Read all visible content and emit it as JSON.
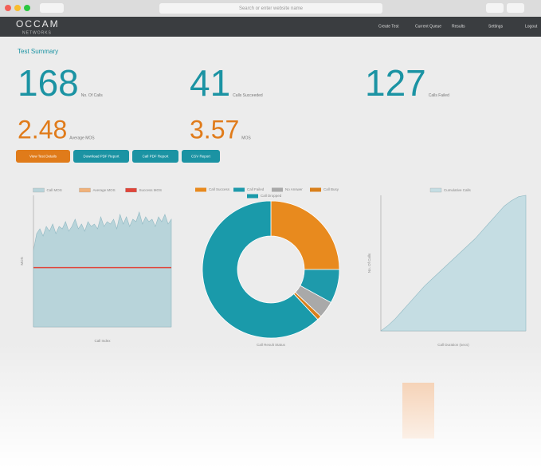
{
  "browser": {
    "address": "Search or enter website name"
  },
  "header": {
    "logo": "OCCAM",
    "logo_sub": "NETWORKS",
    "nav": [
      "Create Test",
      "Current Queue",
      "Results",
      "Settings",
      "Logout"
    ]
  },
  "section_title": "Test Summary",
  "stats": [
    {
      "value": 168,
      "label": "No. Of Calls",
      "color": "#1b93a3"
    },
    {
      "value": 41,
      "label": "Calls Succeeded",
      "color": "#1b93a3"
    },
    {
      "value": 127,
      "label": "Calls Failed",
      "color": "#1b93a3"
    },
    {
      "value": 2.48,
      "label": "Average MOS",
      "color": "#e07b1a"
    },
    {
      "value": 3.57,
      "label": "MOS",
      "color": "#e07b1a"
    }
  ],
  "buttons": [
    {
      "label": "View Test Details",
      "color": "#e07b1a"
    },
    {
      "label": "Download PDF Report",
      "color": "#1b93a3"
    },
    {
      "label": "Call PDF Report",
      "color": "#1b93a3"
    },
    {
      "label": "CSV Report",
      "color": "#1b93a3"
    }
  ],
  "charts": [
    {
      "type": "area",
      "legend": [
        "Call MOS",
        "Average MOS",
        "Success MOS"
      ],
      "legend_colors": [
        "#b8d4da",
        "#f0b27a",
        "#e0453a"
      ],
      "x_label": "Call Index",
      "y_label": "MOS",
      "color": "#b8d4da",
      "average": 2.48,
      "average_color": "#e0453a",
      "ylim": [
        0,
        5.5
      ],
      "values": [
        3.2,
        3.9,
        4.1,
        3.8,
        4.2,
        4.0,
        4.3,
        3.9,
        4.2,
        4.1,
        4.4,
        4.0,
        4.2,
        4.5,
        4.1,
        4.3,
        4.0,
        4.4,
        4.2,
        4.3,
        4.1,
        4.6,
        4.2,
        4.4,
        4.3,
        4.5,
        4.1,
        4.7,
        4.3,
        4.6,
        4.2,
        4.5,
        4.4,
        4.8,
        4.3,
        4.6,
        4.4,
        4.5,
        4.2,
        4.6,
        4.4,
        4.7,
        4.3,
        4.5
      ]
    },
    {
      "type": "donut",
      "x_label": "Call Result Status",
      "series": [
        {
          "name": "Call Success",
          "color": "#e88a1e",
          "value": 25
        },
        {
          "name": "Call Failed",
          "color": "#1e9aab",
          "value": 8
        },
        {
          "name": "No Answer",
          "color": "#a9a9a9",
          "value": 4
        },
        {
          "name": "Call Busy",
          "color": "#d9801c",
          "value": 1
        },
        {
          "name": "Call Dropped",
          "color": "#1a9aaa",
          "value": 62
        }
      ]
    },
    {
      "type": "area",
      "legend": [
        "Cumulative Calls"
      ],
      "legend_colors": [
        "#c5dde3"
      ],
      "x_label": "Call Duration (secs)",
      "y_label": "No. Of Calls",
      "color": "#c5dde3",
      "ylim": [
        0,
        100
      ],
      "values": [
        0,
        4,
        9,
        15,
        21,
        27,
        33,
        38,
        43,
        48,
        53,
        58,
        63,
        68,
        74,
        80,
        86,
        92,
        96,
        99,
        100
      ]
    }
  ]
}
